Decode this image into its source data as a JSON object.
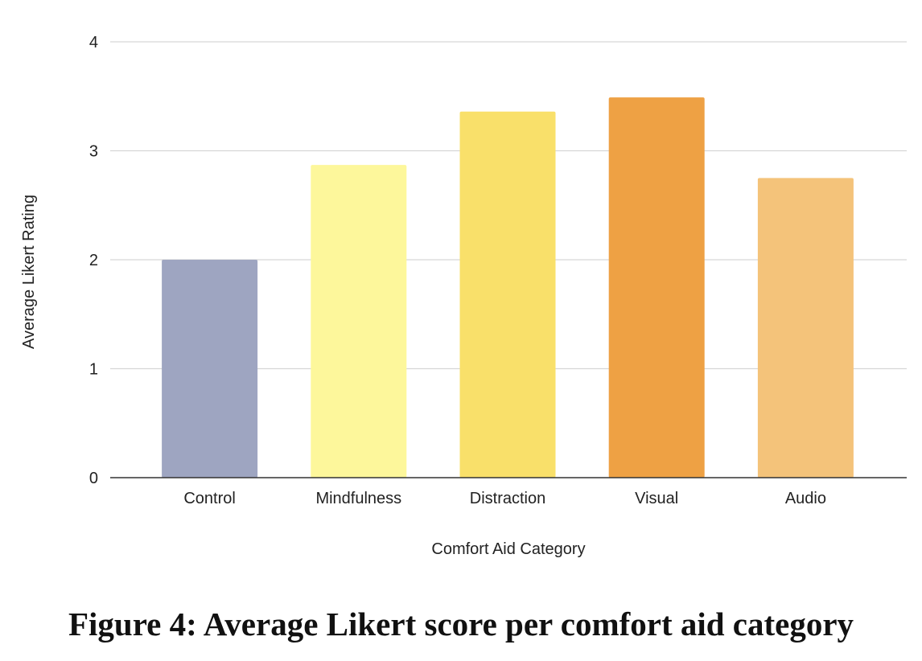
{
  "chart_data": {
    "type": "bar",
    "categories": [
      "Control",
      "Mindfulness",
      "Distraction",
      "Visual",
      "Audio"
    ],
    "values": [
      2.0,
      2.87,
      3.36,
      3.49,
      2.75
    ],
    "colors": [
      "#9ea5c1",
      "#fdf79b",
      "#f9e06a",
      "#eea144",
      "#f4c37a"
    ],
    "xlabel": "Comfort Aid Category",
    "ylabel": "Average Likert Rating",
    "ylim": [
      0,
      4
    ],
    "yticks": [
      "0",
      "1",
      "2",
      "3",
      "4"
    ],
    "grid": true,
    "legend": "none"
  },
  "caption": "Figure 4: Average Likert score per comfort aid category"
}
